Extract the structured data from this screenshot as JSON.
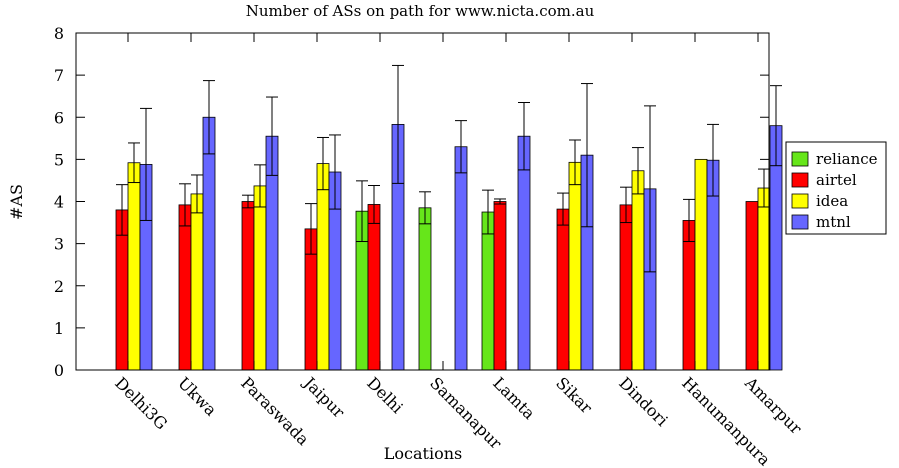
{
  "chart_data": {
    "type": "bar",
    "title": "Number of ASs on path for www.nicta.com.au",
    "xlabel": "Locations",
    "ylabel": "#AS",
    "ylim": [
      0,
      8
    ],
    "yticks": [
      0,
      1,
      2,
      3,
      4,
      5,
      6,
      7,
      8
    ],
    "legend_position": "right",
    "grid": false,
    "error_bars": true,
    "categories": [
      "Delhi3G",
      "Ukwa",
      "Paraswada",
      "Jaipur",
      "Delhi",
      "Samanapur",
      "Lamta",
      "Sikar",
      "Dindori",
      "Hanumanpura",
      "Amarpur"
    ],
    "series": [
      {
        "name": "reliance",
        "color": "#66e61a",
        "values": [
          null,
          null,
          null,
          null,
          3.77,
          3.85,
          3.75,
          null,
          null,
          null,
          null
        ],
        "errors": [
          null,
          null,
          null,
          null,
          0.72,
          0.38,
          0.52,
          null,
          null,
          null,
          null
        ]
      },
      {
        "name": "airtel",
        "color": "#ff0000",
        "values": [
          3.8,
          3.92,
          4.0,
          3.35,
          3.93,
          null,
          4.0,
          3.82,
          3.92,
          3.55,
          4.0
        ],
        "errors": [
          0.6,
          0.5,
          0.15,
          0.6,
          0.45,
          null,
          0.06,
          0.38,
          0.42,
          0.5,
          null
        ]
      },
      {
        "name": "idea",
        "color": "#ffff00",
        "values": [
          4.92,
          4.18,
          4.37,
          4.9,
          null,
          null,
          null,
          4.93,
          4.73,
          5.0,
          4.32
        ],
        "errors": [
          0.47,
          0.45,
          0.5,
          0.62,
          null,
          null,
          null,
          0.53,
          0.55,
          null,
          0.45
        ]
      },
      {
        "name": "mtnl",
        "color": "#6666ff",
        "values": [
          4.88,
          6.0,
          5.55,
          4.7,
          5.83,
          5.3,
          5.55,
          5.1,
          4.3,
          4.98,
          5.8
        ],
        "errors": [
          1.33,
          0.87,
          0.93,
          0.88,
          1.4,
          0.62,
          0.8,
          1.7,
          1.97,
          0.85,
          0.95
        ]
      }
    ]
  }
}
